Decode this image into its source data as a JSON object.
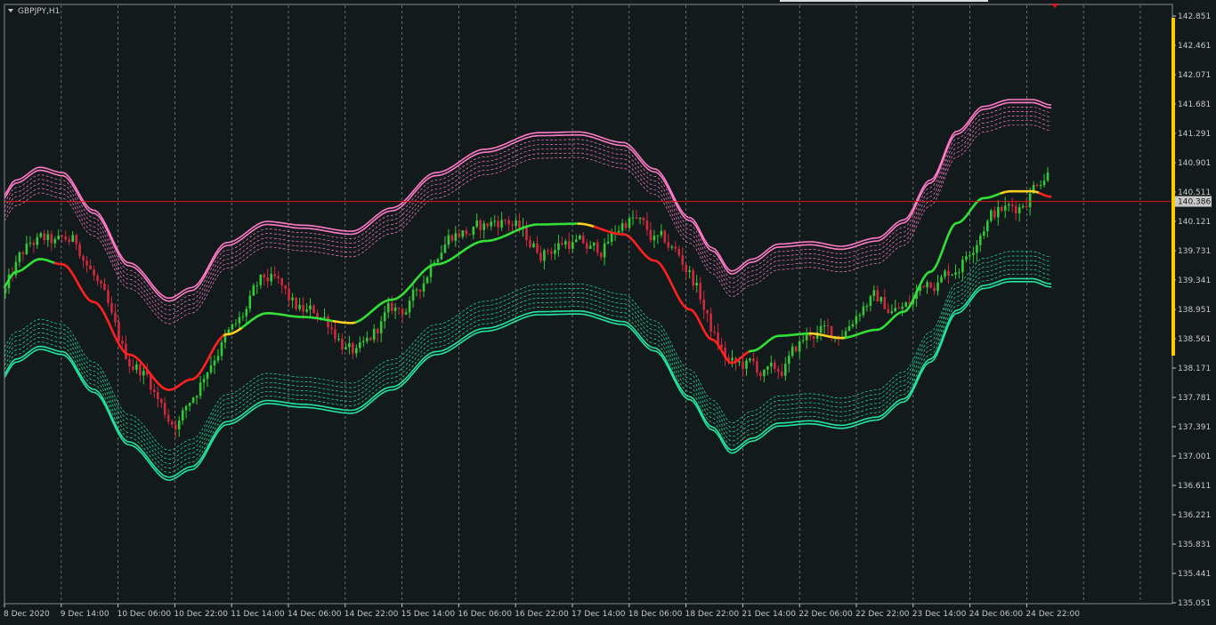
{
  "chart_data": {
    "type": "candlestick",
    "symbol_label": "GBPJPY,H1",
    "ylim": [
      135.051,
      142.851
    ],
    "y_ticks": [
      "142.851",
      "142.461",
      "142.071",
      "141.681",
      "141.291",
      "140.901",
      "140.511",
      "140.121",
      "139.731",
      "139.341",
      "138.951",
      "138.561",
      "138.171",
      "137.781",
      "137.391",
      "137.001",
      "136.611",
      "136.221",
      "135.831",
      "135.441",
      "135.051"
    ],
    "x_ticks": [
      "8 Dec 2020",
      "9 Dec 14:00",
      "10 Dec 06:00",
      "10 Dec 22:00",
      "11 Dec 14:00",
      "14 Dec 06:00",
      "14 Dec 22:00",
      "15 Dec 14:00",
      "16 Dec 06:00",
      "16 Dec 22:00",
      "17 Dec 14:00",
      "18 Dec 06:00",
      "18 Dec 22:00",
      "21 Dec 14:00",
      "22 Dec 06:00",
      "22 Dec 22:00",
      "23 Dec 14:00",
      "24 Dec 06:00",
      "24 Dec 22:00"
    ],
    "current_price": "140.386",
    "bar_count": 295,
    "midline_key": [
      [
        0,
        139.2
      ],
      [
        18,
        139.45
      ],
      [
        45,
        139.62
      ],
      [
        70,
        139.55
      ],
      [
        105,
        139.05
      ],
      [
        145,
        138.35
      ],
      [
        190,
        137.88
      ],
      [
        215,
        138.02
      ],
      [
        255,
        138.62
      ],
      [
        300,
        138.9
      ],
      [
        340,
        138.85
      ],
      [
        395,
        138.77
      ],
      [
        440,
        139.08
      ],
      [
        490,
        139.55
      ],
      [
        545,
        139.86
      ],
      [
        605,
        140.08
      ],
      [
        650,
        140.09
      ],
      [
        700,
        139.95
      ],
      [
        735,
        139.6
      ],
      [
        775,
        138.95
      ],
      [
        800,
        138.55
      ],
      [
        822,
        138.24
      ],
      [
        845,
        138.4
      ],
      [
        875,
        138.6
      ],
      [
        910,
        138.63
      ],
      [
        945,
        138.57
      ],
      [
        985,
        138.68
      ],
      [
        1015,
        138.92
      ],
      [
        1045,
        139.45
      ],
      [
        1075,
        140.1
      ],
      [
        1105,
        140.43
      ],
      [
        1135,
        140.52
      ],
      [
        1160,
        140.52
      ],
      [
        1180,
        140.45
      ]
    ],
    "midline_colors": [
      [
        0,
        "#33e038"
      ],
      [
        45,
        "#33e038"
      ],
      [
        62,
        "#ff2020"
      ],
      [
        120,
        "#ff2020"
      ],
      [
        245,
        "#ff2020"
      ],
      [
        252,
        "#ffd020"
      ],
      [
        272,
        "#33e038"
      ],
      [
        368,
        "#33e038"
      ],
      [
        375,
        "#ffd020"
      ],
      [
        400,
        "#33e038"
      ],
      [
        640,
        "#33e038"
      ],
      [
        650,
        "#ffd020"
      ],
      [
        668,
        "#ff2020"
      ],
      [
        800,
        "#ff2020"
      ],
      [
        825,
        "#ff2020"
      ],
      [
        842,
        "#33e038"
      ],
      [
        898,
        "#33e038"
      ],
      [
        910,
        "#ffd020"
      ],
      [
        940,
        "#ffd020"
      ],
      [
        950,
        "#33e038"
      ],
      [
        1115,
        "#33e038"
      ],
      [
        1125,
        "#ffd020"
      ],
      [
        1160,
        "#ffd020"
      ],
      [
        1168,
        "#ff2020"
      ],
      [
        1180,
        "#ff2020"
      ]
    ],
    "band_offsets_upper": [
      1.22,
      1.18,
      1.12,
      1.06,
      1.0,
      0.94,
      0.88
    ],
    "band_offsets_lower": [
      1.2,
      1.16,
      1.1,
      1.04,
      0.98,
      0.92,
      0.86,
      0.8
    ],
    "colors": {
      "background": "#131a1b",
      "axis_text": "#c8c8c8",
      "grid": "#808080",
      "bull_candle": "#33c93a",
      "bear_candle": "#d0283d",
      "upper_band": "#ff7ac8",
      "lower_band": "#22e6a0",
      "price_line": "#e01818",
      "right_bar": "#ffcc00"
    }
  }
}
